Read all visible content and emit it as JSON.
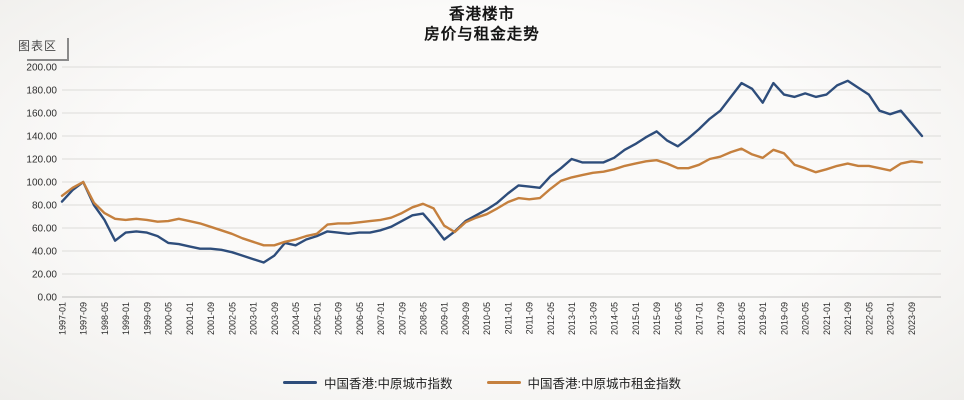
{
  "header": {
    "title_line1": "香港楼市",
    "title_line2": "房价与租金走势"
  },
  "overlay": {
    "chart_area_label": "图表区"
  },
  "chart_data": {
    "type": "line",
    "title": "香港楼市 房价与租金走势",
    "grid": "horizontal",
    "legend_position": "bottom",
    "ylim": [
      0,
      200
    ],
    "ytick_step": 20,
    "ytick_labels": [
      "0.00",
      "20.00",
      "40.00",
      "60.00",
      "80.00",
      "100.00",
      "120.00",
      "140.00",
      "160.00",
      "180.00",
      "200.00"
    ],
    "xtick_every": 2,
    "xtick_labels": [
      "1997-01",
      "1997-09",
      "1998-05",
      "1999-01",
      "1999-09",
      "2000-05",
      "2001-01",
      "2001-09",
      "2002-05",
      "2003-01",
      "2003-09",
      "2004-05",
      "2005-01",
      "2005-09",
      "2006-05",
      "2007-01",
      "2007-09",
      "2008-05",
      "2009-01",
      "2009-09",
      "2010-05",
      "2011-01",
      "2011-09",
      "2012-05",
      "2013-01",
      "2013-09",
      "2014-05",
      "2015-01",
      "2015-09",
      "2016-05",
      "2017-01",
      "2017-09",
      "2018-05",
      "2019-01",
      "2019-09",
      "2020-05",
      "2021-01",
      "2021-09",
      "2022-05",
      "2023-01",
      "2023-09"
    ],
    "x": [
      "1997-01",
      "1997-05",
      "1997-09",
      "1998-01",
      "1998-05",
      "1998-09",
      "1999-01",
      "1999-05",
      "1999-09",
      "2000-01",
      "2000-05",
      "2000-09",
      "2001-01",
      "2001-05",
      "2001-09",
      "2002-01",
      "2002-05",
      "2002-09",
      "2003-01",
      "2003-05",
      "2003-09",
      "2004-01",
      "2004-05",
      "2004-09",
      "2005-01",
      "2005-05",
      "2005-09",
      "2006-01",
      "2006-05",
      "2006-09",
      "2007-01",
      "2007-05",
      "2007-09",
      "2008-01",
      "2008-05",
      "2008-09",
      "2009-01",
      "2009-05",
      "2009-09",
      "2010-01",
      "2010-05",
      "2010-09",
      "2011-01",
      "2011-05",
      "2011-09",
      "2012-01",
      "2012-05",
      "2012-09",
      "2013-01",
      "2013-05",
      "2013-09",
      "2014-01",
      "2014-05",
      "2014-09",
      "2015-01",
      "2015-05",
      "2015-09",
      "2016-01",
      "2016-05",
      "2016-09",
      "2017-01",
      "2017-05",
      "2017-09",
      "2018-01",
      "2018-05",
      "2018-09",
      "2019-01",
      "2019-05",
      "2019-09",
      "2020-01",
      "2020-05",
      "2020-09",
      "2021-01",
      "2021-05",
      "2021-09",
      "2022-01",
      "2022-05",
      "2022-09",
      "2023-01",
      "2023-05",
      "2023-09",
      "2024-01"
    ],
    "series": [
      {
        "name": "中国香港:中原城市指数",
        "color": "#2e4d7b",
        "values": [
          83,
          93,
          100,
          80,
          67,
          49,
          56,
          57,
          56,
          53,
          47,
          46,
          44,
          42,
          42,
          41,
          39,
          36,
          33,
          30,
          36,
          47,
          45,
          50,
          53,
          57,
          56,
          55,
          56,
          56,
          58,
          61,
          66,
          71,
          72.5,
          62,
          50,
          57,
          66,
          71,
          76,
          82,
          90,
          97,
          96,
          95,
          105,
          112,
          120,
          117,
          117,
          117,
          121,
          128,
          133,
          139,
          144,
          136,
          131,
          138,
          146,
          155,
          162,
          174,
          186,
          181,
          169,
          186,
          176,
          174,
          177,
          174,
          176,
          184,
          188,
          182,
          176,
          162,
          159,
          162,
          151,
          140
        ]
      },
      {
        "name": "中国香港:中原城市租金指数",
        "color": "#c5803e",
        "values": [
          88,
          95,
          100,
          82,
          73,
          68,
          67,
          68,
          67,
          65.5,
          66,
          68,
          66,
          64,
          61,
          58,
          55,
          51,
          48,
          45,
          45,
          48,
          50,
          53,
          55,
          63,
          64,
          64,
          65,
          66,
          67,
          69,
          73,
          78,
          81,
          77,
          62,
          56.5,
          65,
          69,
          72,
          77,
          82.5,
          86,
          85,
          86,
          94,
          101,
          104,
          106,
          108,
          109,
          111,
          114,
          116,
          118,
          119,
          116,
          112,
          112,
          115,
          120,
          122,
          126,
          129,
          124,
          121,
          128,
          125,
          115,
          112,
          108.5,
          111,
          114,
          116,
          114,
          114,
          112,
          110,
          116,
          118,
          117
        ]
      }
    ]
  }
}
